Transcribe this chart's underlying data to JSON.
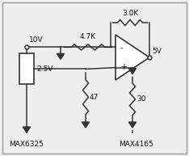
{
  "bg_color": "#eeeeee",
  "border_color": "#999999",
  "line_color": "#333333",
  "component_color": "#333333",
  "text_color": "#111111",
  "labels": {
    "v10": "10V",
    "v25": "2.5V",
    "v5": "5V",
    "r47k": "4.7K",
    "r30k": "3.0K",
    "r47": "47",
    "r30": "30",
    "max6325": "MAX6325",
    "max4165": "MAX4165"
  },
  "figsize": [
    2.34,
    1.93
  ],
  "dpi": 100
}
